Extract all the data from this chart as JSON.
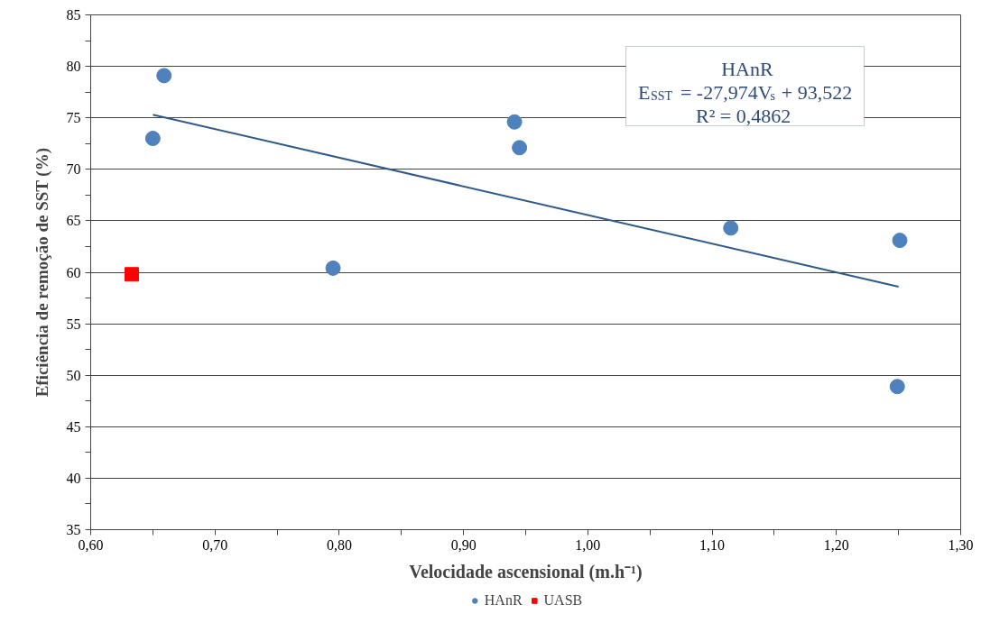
{
  "chart_data": {
    "type": "scatter",
    "xlabel": "Velocidade ascensional (m.h⁻¹)",
    "ylabel": "Eficiência de remoção de SST (%)",
    "xlim": [
      0.6,
      1.3
    ],
    "xticks": [
      {
        "value": 0.6,
        "label": "0,60"
      },
      {
        "value": 0.65,
        "label": null
      },
      {
        "value": 0.7,
        "label": "0,70"
      },
      {
        "value": 0.75,
        "label": null
      },
      {
        "value": 0.8,
        "label": "0,80"
      },
      {
        "value": 0.85,
        "label": null
      },
      {
        "value": 0.9,
        "label": "0,90"
      },
      {
        "value": 0.95,
        "label": null
      },
      {
        "value": 1.0,
        "label": "1,00"
      },
      {
        "value": 1.05,
        "label": null
      },
      {
        "value": 1.1,
        "label": "1,10"
      },
      {
        "value": 1.15,
        "label": null
      },
      {
        "value": 1.2,
        "label": "1,20"
      },
      {
        "value": 1.25,
        "label": null
      },
      {
        "value": 1.3,
        "label": "1,30"
      }
    ],
    "ylim": [
      35,
      85
    ],
    "yticks": [
      35,
      {
        "value": 37.5,
        "label": null
      },
      40,
      {
        "value": 42.5,
        "label": null
      },
      45,
      {
        "value": 47.5,
        "label": null
      },
      50,
      {
        "value": 52.5,
        "label": null
      },
      55,
      {
        "value": 57.5,
        "label": null
      },
      60,
      {
        "value": 62.5,
        "label": null
      },
      65,
      {
        "value": 67.5,
        "label": null
      },
      70,
      {
        "value": 72.5,
        "label": null
      },
      75,
      {
        "value": 77.5,
        "label": null
      },
      80,
      {
        "value": 82.5,
        "label": null
      },
      85
    ],
    "grid": "y",
    "legend": "bottom",
    "series": [
      {
        "name": "HAnR",
        "marker": "circle",
        "color": "#4f81bd",
        "x": [
          0.659,
          0.65,
          0.795,
          0.941,
          0.945,
          1.115,
          1.251,
          1.249
        ],
        "values": [
          79.1,
          73.0,
          60.4,
          74.6,
          72.1,
          64.3,
          63.1,
          48.9
        ]
      },
      {
        "name": "UASB",
        "marker": "square",
        "color": "#ff0000",
        "x": [
          0.633
        ],
        "values": [
          59.8
        ]
      },
      {
        "type": "line",
        "color": "#2e5a8a",
        "x": [
          0.65,
          1.25
        ],
        "values": [
          75.3,
          58.6
        ]
      }
    ],
    "annotations": [
      "HAnR",
      "E$_{SST}$ = -27,974V$_{s}$ + 93,522",
      "R² = 0,4862"
    ]
  }
}
